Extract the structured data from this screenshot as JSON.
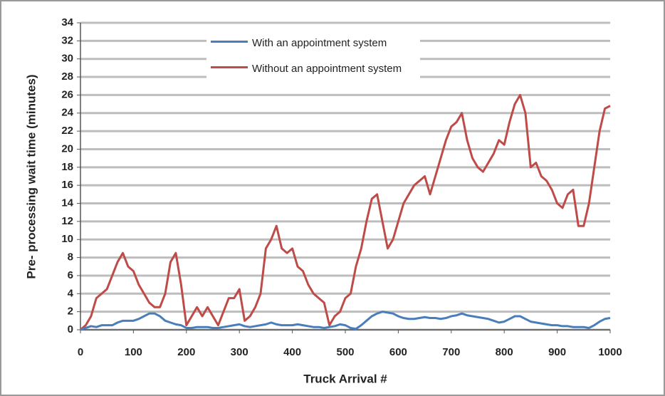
{
  "chart_data": {
    "type": "line",
    "ylabel": "Pre- processing wait time (minutes)",
    "xlabel": "Truck Arrival #",
    "x": [
      0,
      10,
      20,
      30,
      40,
      50,
      60,
      70,
      80,
      90,
      100,
      110,
      120,
      130,
      140,
      150,
      160,
      170,
      180,
      190,
      200,
      210,
      220,
      230,
      240,
      250,
      260,
      270,
      280,
      290,
      300,
      310,
      320,
      330,
      340,
      350,
      360,
      370,
      380,
      390,
      400,
      410,
      420,
      430,
      440,
      450,
      460,
      470,
      480,
      490,
      500,
      510,
      520,
      530,
      540,
      550,
      560,
      570,
      580,
      590,
      600,
      610,
      620,
      630,
      640,
      650,
      660,
      670,
      680,
      690,
      700,
      710,
      720,
      730,
      740,
      750,
      760,
      770,
      780,
      790,
      800,
      810,
      820,
      830,
      840,
      850,
      860,
      870,
      880,
      890,
      900,
      910,
      920,
      930,
      940,
      950,
      960,
      970,
      980,
      990,
      1000
    ],
    "series": [
      {
        "name": "With an appointment system",
        "color": "#4a7ebb",
        "values": [
          0,
          0.2,
          0.4,
          0.3,
          0.5,
          0.5,
          0.5,
          0.8,
          1,
          1,
          1,
          1.2,
          1.5,
          1.8,
          1.8,
          1.5,
          1,
          0.8,
          0.6,
          0.5,
          0.2,
          0.2,
          0.3,
          0.3,
          0.3,
          0.2,
          0.2,
          0.3,
          0.4,
          0.5,
          0.6,
          0.4,
          0.3,
          0.4,
          0.5,
          0.6,
          0.8,
          0.6,
          0.5,
          0.5,
          0.5,
          0.6,
          0.5,
          0.4,
          0.3,
          0.3,
          0.2,
          0.3,
          0.4,
          0.6,
          0.5,
          0.2,
          0.1,
          0.5,
          1,
          1.5,
          1.8,
          2,
          1.9,
          1.8,
          1.5,
          1.3,
          1.2,
          1.2,
          1.3,
          1.4,
          1.3,
          1.3,
          1.2,
          1.3,
          1.5,
          1.6,
          1.8,
          1.6,
          1.5,
          1.4,
          1.3,
          1.2,
          1,
          0.8,
          0.9,
          1.2,
          1.5,
          1.5,
          1.2,
          0.9,
          0.8,
          0.7,
          0.6,
          0.5,
          0.5,
          0.4,
          0.4,
          0.3,
          0.3,
          0.3,
          0.2,
          0.5,
          0.9,
          1.2,
          1.3
        ]
      },
      {
        "name": "Without an appointment system",
        "color": "#be4b48",
        "values": [
          0,
          0.5,
          1.5,
          3.5,
          4,
          4.5,
          6,
          7.5,
          8.5,
          7,
          6.5,
          5,
          4,
          3,
          2.5,
          2.5,
          4,
          7.5,
          8.5,
          5,
          0.5,
          1.5,
          2.5,
          1.5,
          2.5,
          1.5,
          0.5,
          2,
          3.5,
          3.5,
          4.5,
          1,
          1.5,
          2.5,
          4,
          9,
          10,
          11.5,
          9,
          8.5,
          9,
          7,
          6.5,
          5,
          4,
          3.5,
          3,
          0.5,
          1.5,
          2,
          3.5,
          4,
          7,
          9,
          12,
          14.5,
          15,
          12,
          9,
          10,
          12,
          14,
          15,
          16,
          16.5,
          17,
          15,
          17,
          19,
          21,
          22.5,
          23,
          24,
          21,
          19,
          18,
          17.5,
          18.5,
          19.5,
          21,
          20.5,
          23,
          25,
          26,
          24,
          18,
          18.5,
          17,
          16.5,
          15.5,
          14,
          13.5,
          15,
          15.5,
          11.5,
          11.5,
          14,
          18,
          22,
          24.5,
          24.8
        ]
      }
    ],
    "xlim": [
      0,
      1000
    ],
    "xticks": [
      0,
      100,
      200,
      300,
      400,
      500,
      600,
      700,
      800,
      900,
      1000
    ],
    "ylim": [
      0,
      34
    ],
    "yticks": [
      0,
      2,
      4,
      6,
      8,
      10,
      12,
      14,
      16,
      18,
      20,
      22,
      24,
      26,
      28,
      30,
      32,
      34
    ],
    "grid": true,
    "legend": "upper center"
  }
}
